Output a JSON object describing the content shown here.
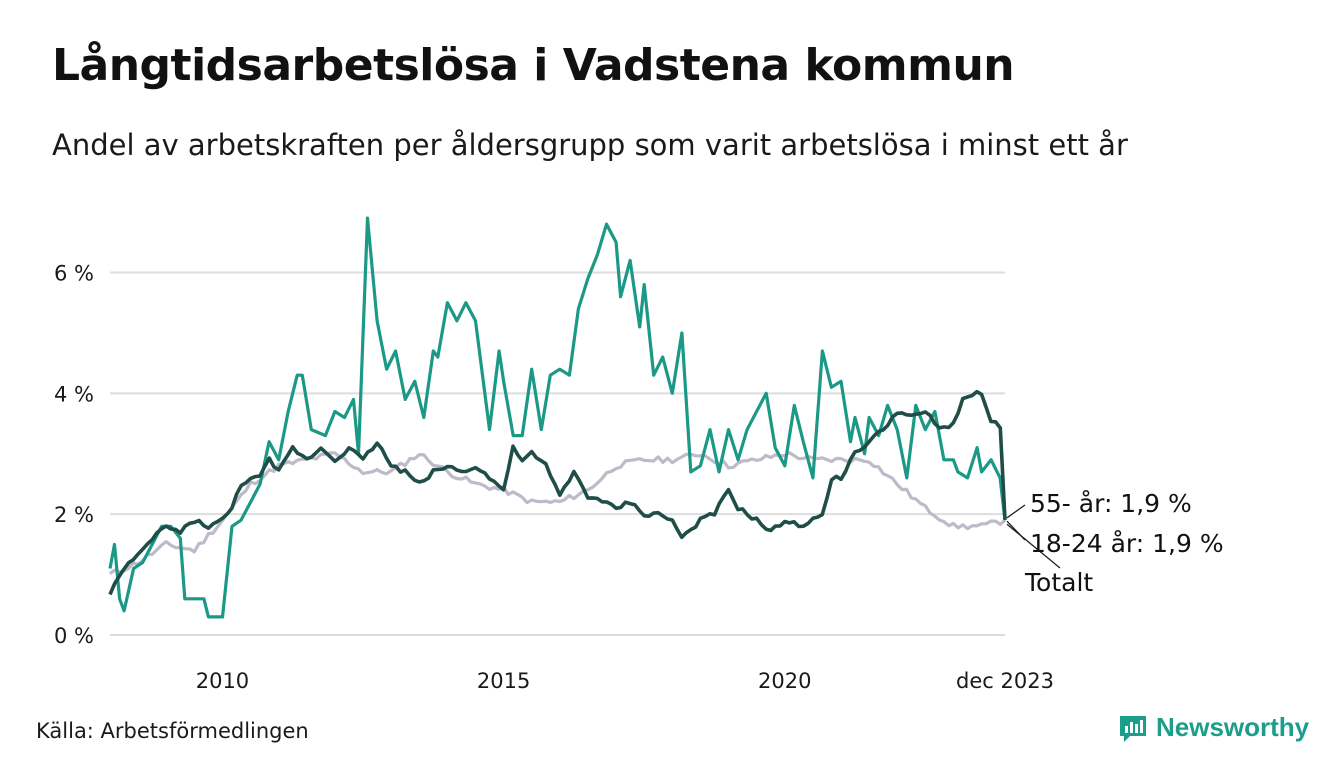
{
  "header": {
    "title": "Långtidsarbetslösa i Vadstena kommun",
    "subtitle": "Andel av arbetskraften per åldersgrupp som varit arbetslösa i minst ett år"
  },
  "footer": {
    "source": "Källa: Arbetsförmedlingen",
    "brand": "Newsworthy"
  },
  "colors": {
    "age_18_24": "#1b9886",
    "age_55": "#1f4d47",
    "total": "#bdbac9",
    "grid": "#dddddd",
    "brand": "#1b9e8c"
  },
  "chart_data": {
    "type": "line",
    "title": "Långtidsarbetslösa i Vadstena kommun",
    "x_start": 2008.0,
    "x_step_months": 1,
    "x_ticks": [
      {
        "value": 2010,
        "label": "2010"
      },
      {
        "value": 2015,
        "label": "2015"
      },
      {
        "value": 2020,
        "label": "2020"
      },
      {
        "value": 2023.917,
        "label": "dec 2023"
      }
    ],
    "y_ticks": [
      {
        "value": 0,
        "label": "0 %"
      },
      {
        "value": 2,
        "label": "2 %"
      },
      {
        "value": 4,
        "label": "4 %"
      },
      {
        "value": 6,
        "label": "6 %"
      }
    ],
    "ylim": [
      0,
      7.2
    ],
    "xlim": [
      2008.0,
      2023.917
    ],
    "grid": true,
    "series": [
      {
        "name": "Totalt",
        "end_label": "Totalt",
        "color_key": "total",
        "anchors": [
          [
            2008.0,
            1.0
          ],
          [
            2008.5,
            1.2
          ],
          [
            2009.0,
            1.5
          ],
          [
            2009.5,
            1.4
          ],
          [
            2010.0,
            1.9
          ],
          [
            2010.5,
            2.5
          ],
          [
            2011.0,
            2.8
          ],
          [
            2011.5,
            2.9
          ],
          [
            2012.0,
            3.0
          ],
          [
            2012.5,
            2.7
          ],
          [
            2013.0,
            2.7
          ],
          [
            2013.5,
            3.0
          ],
          [
            2014.0,
            2.7
          ],
          [
            2014.5,
            2.5
          ],
          [
            2015.0,
            2.4
          ],
          [
            2015.5,
            2.2
          ],
          [
            2016.0,
            2.2
          ],
          [
            2016.5,
            2.4
          ],
          [
            2017.0,
            2.8
          ],
          [
            2017.5,
            2.9
          ],
          [
            2018.0,
            2.9
          ],
          [
            2018.5,
            3.0
          ],
          [
            2019.0,
            2.8
          ],
          [
            2019.5,
            2.9
          ],
          [
            2020.0,
            3.0
          ],
          [
            2020.5,
            2.9
          ],
          [
            2021.0,
            2.9
          ],
          [
            2021.5,
            2.9
          ],
          [
            2022.0,
            2.5
          ],
          [
            2022.5,
            2.1
          ],
          [
            2023.0,
            1.8
          ],
          [
            2023.5,
            1.8
          ],
          [
            2023.917,
            1.9
          ]
        ]
      },
      {
        "name": "18-24 år",
        "end_label": "18-24 år: 1,9 %",
        "color_key": "age_18_24",
        "anchors": [
          [
            2008.0,
            1.1
          ],
          [
            2008.08,
            1.5
          ],
          [
            2008.17,
            0.6
          ],
          [
            2008.25,
            0.4
          ],
          [
            2008.42,
            1.1
          ],
          [
            2008.58,
            1.2
          ],
          [
            2008.75,
            1.5
          ],
          [
            2008.92,
            1.8
          ],
          [
            2009.08,
            1.8
          ],
          [
            2009.25,
            1.6
          ],
          [
            2009.33,
            0.6
          ],
          [
            2009.5,
            0.6
          ],
          [
            2009.67,
            0.6
          ],
          [
            2009.75,
            0.3
          ],
          [
            2010.0,
            0.3
          ],
          [
            2010.17,
            1.8
          ],
          [
            2010.33,
            1.9
          ],
          [
            2010.5,
            2.2
          ],
          [
            2010.67,
            2.5
          ],
          [
            2010.83,
            3.2
          ],
          [
            2011.0,
            2.9
          ],
          [
            2011.17,
            3.7
          ],
          [
            2011.33,
            4.3
          ],
          [
            2011.42,
            4.3
          ],
          [
            2011.58,
            3.4
          ],
          [
            2011.83,
            3.3
          ],
          [
            2012.0,
            3.7
          ],
          [
            2012.17,
            3.6
          ],
          [
            2012.33,
            3.9
          ],
          [
            2012.42,
            3.0
          ],
          [
            2012.58,
            6.9
          ],
          [
            2012.75,
            5.2
          ],
          [
            2012.92,
            4.4
          ],
          [
            2013.08,
            4.7
          ],
          [
            2013.25,
            3.9
          ],
          [
            2013.42,
            4.2
          ],
          [
            2013.58,
            3.6
          ],
          [
            2013.75,
            4.7
          ],
          [
            2013.83,
            4.6
          ],
          [
            2014.0,
            5.5
          ],
          [
            2014.17,
            5.2
          ],
          [
            2014.33,
            5.5
          ],
          [
            2014.5,
            5.2
          ],
          [
            2014.75,
            3.4
          ],
          [
            2014.92,
            4.7
          ],
          [
            2015.0,
            4.2
          ],
          [
            2015.17,
            3.3
          ],
          [
            2015.33,
            3.3
          ],
          [
            2015.5,
            4.4
          ],
          [
            2015.67,
            3.4
          ],
          [
            2015.83,
            4.3
          ],
          [
            2016.0,
            4.4
          ],
          [
            2016.17,
            4.3
          ],
          [
            2016.33,
            5.4
          ],
          [
            2016.5,
            5.9
          ],
          [
            2016.67,
            6.3
          ],
          [
            2016.83,
            6.8
          ],
          [
            2017.0,
            6.5
          ],
          [
            2017.08,
            5.6
          ],
          [
            2017.25,
            6.2
          ],
          [
            2017.42,
            5.1
          ],
          [
            2017.5,
            5.8
          ],
          [
            2017.67,
            4.3
          ],
          [
            2017.83,
            4.6
          ],
          [
            2018.0,
            4.0
          ],
          [
            2018.17,
            5.0
          ],
          [
            2018.33,
            2.7
          ],
          [
            2018.5,
            2.8
          ],
          [
            2018.67,
            3.4
          ],
          [
            2018.83,
            2.7
          ],
          [
            2019.0,
            3.4
          ],
          [
            2019.17,
            2.9
          ],
          [
            2019.33,
            3.4
          ],
          [
            2019.5,
            3.7
          ],
          [
            2019.67,
            4.0
          ],
          [
            2019.83,
            3.1
          ],
          [
            2020.0,
            2.8
          ],
          [
            2020.17,
            3.8
          ],
          [
            2020.33,
            3.2
          ],
          [
            2020.5,
            2.6
          ],
          [
            2020.67,
            4.7
          ],
          [
            2020.83,
            4.1
          ],
          [
            2021.0,
            4.2
          ],
          [
            2021.17,
            3.2
          ],
          [
            2021.25,
            3.6
          ],
          [
            2021.42,
            3.0
          ],
          [
            2021.5,
            3.6
          ],
          [
            2021.67,
            3.3
          ],
          [
            2021.83,
            3.8
          ],
          [
            2022.0,
            3.4
          ],
          [
            2022.17,
            2.6
          ],
          [
            2022.33,
            3.8
          ],
          [
            2022.5,
            3.4
          ],
          [
            2022.67,
            3.7
          ],
          [
            2022.83,
            2.9
          ],
          [
            2023.0,
            2.9
          ],
          [
            2023.08,
            2.7
          ],
          [
            2023.25,
            2.6
          ],
          [
            2023.42,
            3.1
          ],
          [
            2023.5,
            2.7
          ],
          [
            2023.67,
            2.9
          ],
          [
            2023.83,
            2.6
          ],
          [
            2023.917,
            1.9
          ]
        ]
      },
      {
        "name": "55- år",
        "end_label": "55- år: 1,9 %",
        "color_key": "age_55",
        "anchors": [
          [
            2008.0,
            0.7
          ],
          [
            2008.25,
            1.1
          ],
          [
            2008.5,
            1.3
          ],
          [
            2008.75,
            1.6
          ],
          [
            2009.0,
            1.8
          ],
          [
            2009.25,
            1.7
          ],
          [
            2009.5,
            1.9
          ],
          [
            2009.75,
            1.8
          ],
          [
            2010.0,
            1.9
          ],
          [
            2010.17,
            2.1
          ],
          [
            2010.33,
            2.5
          ],
          [
            2010.5,
            2.6
          ],
          [
            2010.67,
            2.6
          ],
          [
            2010.83,
            2.9
          ],
          [
            2011.0,
            2.7
          ],
          [
            2011.25,
            3.1
          ],
          [
            2011.5,
            2.9
          ],
          [
            2011.75,
            3.1
          ],
          [
            2012.0,
            2.9
          ],
          [
            2012.25,
            3.1
          ],
          [
            2012.5,
            2.9
          ],
          [
            2012.75,
            3.2
          ],
          [
            2013.0,
            2.8
          ],
          [
            2013.25,
            2.7
          ],
          [
            2013.5,
            2.5
          ],
          [
            2013.75,
            2.7
          ],
          [
            2014.0,
            2.8
          ],
          [
            2014.25,
            2.7
          ],
          [
            2014.5,
            2.8
          ],
          [
            2014.75,
            2.6
          ],
          [
            2015.0,
            2.4
          ],
          [
            2015.17,
            3.1
          ],
          [
            2015.33,
            2.9
          ],
          [
            2015.5,
            3.0
          ],
          [
            2015.75,
            2.8
          ],
          [
            2016.0,
            2.3
          ],
          [
            2016.25,
            2.7
          ],
          [
            2016.5,
            2.3
          ],
          [
            2016.75,
            2.2
          ],
          [
            2017.0,
            2.1
          ],
          [
            2017.25,
            2.2
          ],
          [
            2017.5,
            2.0
          ],
          [
            2017.75,
            2.0
          ],
          [
            2018.0,
            1.9
          ],
          [
            2018.17,
            1.6
          ],
          [
            2018.5,
            1.9
          ],
          [
            2018.75,
            2.0
          ],
          [
            2019.0,
            2.4
          ],
          [
            2019.17,
            2.1
          ],
          [
            2019.5,
            1.9
          ],
          [
            2019.75,
            1.7
          ],
          [
            2020.0,
            1.9
          ],
          [
            2020.25,
            1.8
          ],
          [
            2020.5,
            1.9
          ],
          [
            2020.67,
            2.0
          ],
          [
            2020.83,
            2.6
          ],
          [
            2021.0,
            2.6
          ],
          [
            2021.25,
            3.0
          ],
          [
            2021.5,
            3.2
          ],
          [
            2021.75,
            3.4
          ],
          [
            2022.0,
            3.7
          ],
          [
            2022.25,
            3.6
          ],
          [
            2022.5,
            3.7
          ],
          [
            2022.75,
            3.4
          ],
          [
            2023.0,
            3.5
          ],
          [
            2023.17,
            3.9
          ],
          [
            2023.33,
            4.0
          ],
          [
            2023.5,
            4.0
          ],
          [
            2023.67,
            3.5
          ],
          [
            2023.83,
            3.5
          ],
          [
            2023.917,
            1.9
          ]
        ]
      }
    ]
  }
}
